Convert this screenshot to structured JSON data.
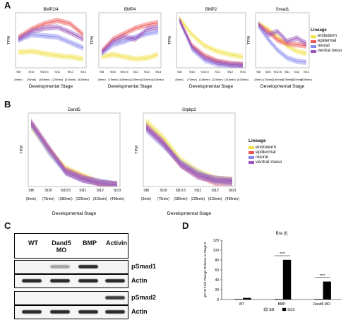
{
  "panels": {
    "a_letter": "A",
    "b_letter": "B",
    "c_letter": "C",
    "d_letter": "D"
  },
  "lineage_legend": {
    "title": "Lineage",
    "items": [
      {
        "name": "endoderm",
        "color": "#f0e040"
      },
      {
        "name": "epidermal",
        "color": "#ee5555"
      },
      {
        "name": "neural",
        "color": "#8888ee"
      },
      {
        "name": "ventral meso",
        "color": "#9955bb"
      }
    ]
  },
  "panel_a_stages_short": [
    "St8",
    "St10",
    "St10.5",
    "St11",
    "St12",
    "St13"
  ],
  "panel_a_stages_times": [
    "(5min)",
    "(75min)",
    "(180min)",
    "(225min)",
    "(315min)",
    "(430min)"
  ],
  "panel_b_stages_short": [
    "St8",
    "St10",
    "St10.5",
    "St11",
    "St12",
    "St13"
  ],
  "panel_b_stages_times": [
    "(5min)",
    "(75min)",
    "(180min)",
    "(225min)",
    "(315min)",
    "(430min)"
  ],
  "xlabel_dev_stage": "Developmental Stage",
  "ylabel_tpm": "TPM",
  "chart_data": [
    {
      "type": "line",
      "title": "BMP2/4",
      "xlabel": "Developmental Stage",
      "ylabel": "TPM",
      "categories": [
        "St8",
        "St10",
        "St10.5",
        "St11",
        "St12",
        "St13"
      ],
      "ylim": [
        0,
        100
      ],
      "series": [
        {
          "name": "endoderm",
          "values": [
            28,
            30,
            26,
            22,
            20,
            16
          ]
        },
        {
          "name": "epidermal",
          "values": [
            55,
            70,
            80,
            86,
            80,
            60
          ]
        },
        {
          "name": "neural",
          "values": [
            50,
            60,
            58,
            56,
            46,
            36
          ]
        },
        {
          "name": "ventral meso",
          "values": [
            52,
            66,
            72,
            74,
            64,
            52
          ]
        }
      ]
    },
    {
      "type": "line",
      "title": "BMP4",
      "xlabel": "Developmental Stage",
      "ylabel": "TPM",
      "categories": [
        "St8",
        "St10",
        "St10.5",
        "St11",
        "St12",
        "St13"
      ],
      "ylim": [
        0,
        100
      ],
      "series": [
        {
          "name": "endoderm",
          "values": [
            20,
            24,
            20,
            16,
            18,
            24
          ]
        },
        {
          "name": "epidermal",
          "values": [
            30,
            52,
            62,
            72,
            78,
            82
          ]
        },
        {
          "name": "neural",
          "values": [
            26,
            42,
            48,
            56,
            62,
            66
          ]
        },
        {
          "name": "ventral meso",
          "values": [
            28,
            48,
            56,
            52,
            70,
            74
          ]
        }
      ]
    },
    {
      "type": "line",
      "title": "BMP2",
      "xlabel": "Developmental Stage",
      "ylabel": "TPM",
      "categories": [
        "St8",
        "St10",
        "St10.5",
        "St11",
        "St12",
        "St13"
      ],
      "ylim": [
        0,
        100
      ],
      "series": [
        {
          "name": "endoderm",
          "values": [
            90,
            60,
            40,
            30,
            24,
            20
          ]
        },
        {
          "name": "epidermal",
          "values": [
            88,
            40,
            22,
            12,
            8,
            6
          ]
        },
        {
          "name": "neural",
          "values": [
            86,
            34,
            14,
            6,
            4,
            3
          ]
        },
        {
          "name": "ventral meso",
          "values": [
            87,
            38,
            18,
            10,
            6,
            5
          ]
        }
      ]
    },
    {
      "type": "line",
      "title": "Smad1",
      "xlabel": "Developmental Stage",
      "ylabel": "TPM",
      "categories": [
        "St8",
        "St10",
        "St10.5",
        "St11",
        "St12",
        "St13"
      ],
      "ylim": [
        0,
        100
      ],
      "series": [
        {
          "name": "endoderm",
          "values": [
            80,
            70,
            56,
            40,
            30,
            26
          ]
        },
        {
          "name": "epidermal",
          "values": [
            78,
            66,
            50,
            44,
            42,
            40
          ]
        },
        {
          "name": "neural",
          "values": [
            76,
            52,
            32,
            18,
            12,
            10
          ]
        },
        {
          "name": "ventral meso",
          "values": [
            80,
            60,
            66,
            48,
            54,
            44
          ]
        }
      ]
    },
    {
      "type": "line",
      "title": "Dand5",
      "xlabel": "Developmental Stage",
      "ylabel": "TPM",
      "categories": [
        "St8",
        "St10",
        "St10.5",
        "St11",
        "St12",
        "St13"
      ],
      "ylim": [
        0,
        100
      ],
      "series": [
        {
          "name": "endoderm",
          "values": [
            82,
            50,
            24,
            14,
            4,
            2
          ]
        },
        {
          "name": "epidermal",
          "values": [
            86,
            52,
            22,
            12,
            4,
            2
          ]
        },
        {
          "name": "neural",
          "values": [
            84,
            48,
            20,
            10,
            6,
            2
          ]
        },
        {
          "name": "ventral meso",
          "values": [
            88,
            54,
            20,
            10,
            4,
            2
          ]
        }
      ]
    },
    {
      "type": "line",
      "title": "Gtpbp2",
      "xlabel": "Developmental Stage",
      "ylabel": "TPM",
      "categories": [
        "St8",
        "St10",
        "St10.5",
        "St11",
        "St12",
        "St13"
      ],
      "ylim": [
        0,
        100
      ],
      "series": [
        {
          "name": "endoderm",
          "values": [
            88,
            66,
            36,
            20,
            10,
            8
          ]
        },
        {
          "name": "epidermal",
          "values": [
            80,
            58,
            30,
            16,
            6,
            6
          ]
        },
        {
          "name": "neural",
          "values": [
            78,
            56,
            32,
            18,
            8,
            6
          ]
        },
        {
          "name": "ventral meso",
          "values": [
            82,
            60,
            30,
            14,
            10,
            8
          ]
        }
      ]
    },
    {
      "type": "bar",
      "title": "Bra (I)",
      "ylabel": "qPCR Fold Change Relative to Stage 8",
      "xlabel": "",
      "categories": [
        "WT",
        "BMP",
        "Dand5 MO"
      ],
      "ylim": [
        0,
        120
      ],
      "yticks": [
        0,
        20,
        40,
        60,
        80,
        100,
        120
      ],
      "series": [
        {
          "name": "St8",
          "values": [
            1,
            1,
            1
          ]
        },
        {
          "name": "St13",
          "values": [
            3,
            80,
            36
          ]
        }
      ],
      "annotations": [
        "****",
        "****"
      ]
    }
  ],
  "blot": {
    "columns": [
      "WT",
      "Dand5 MO",
      "BMP",
      "Activin"
    ],
    "rows": [
      "pSmad1",
      "Actin",
      "pSmad2",
      "Actin"
    ]
  }
}
